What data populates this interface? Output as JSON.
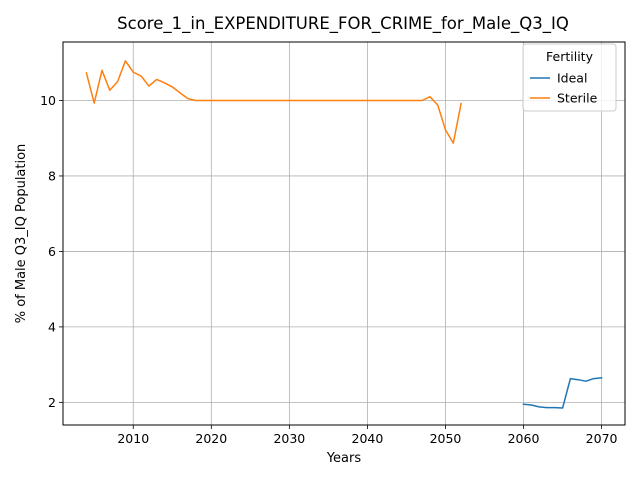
{
  "chart_data": {
    "type": "line",
    "title": "Score_1_in_EXPENDITURE_FOR_CRIME_for_Male_Q3_IQ",
    "xlabel": "Years",
    "ylabel": "% of Male Q3_IQ Population",
    "xlim": [
      2001,
      2073
    ],
    "ylim": [
      1.4,
      11.55
    ],
    "xticks": [
      2010,
      2020,
      2030,
      2040,
      2050,
      2060,
      2070
    ],
    "yticks": [
      2,
      4,
      6,
      8,
      10
    ],
    "grid": true,
    "legend": {
      "title": "Fertility",
      "placement": "top-right"
    },
    "series": [
      {
        "name": "Ideal",
        "color": "#1f77b4",
        "x": [
          2060,
          2061,
          2062,
          2063,
          2064,
          2065,
          2066,
          2067,
          2068,
          2069,
          2070
        ],
        "y": [
          1.95,
          1.93,
          1.88,
          1.86,
          1.86,
          1.85,
          2.63,
          2.6,
          2.56,
          2.63,
          2.65
        ]
      },
      {
        "name": "Sterile",
        "color": "#ff7f0e",
        "x": [
          2004,
          2005,
          2006,
          2007,
          2008,
          2009,
          2010,
          2011,
          2012,
          2013,
          2014,
          2015,
          2016,
          2017,
          2018,
          2019,
          2020,
          2025,
          2030,
          2035,
          2040,
          2045,
          2046,
          2047,
          2048,
          2049,
          2050,
          2051,
          2052
        ],
        "y": [
          10.73,
          9.93,
          10.8,
          10.27,
          10.5,
          11.05,
          10.75,
          10.65,
          10.38,
          10.56,
          10.47,
          10.36,
          10.2,
          10.05,
          10.0,
          10.0,
          10.0,
          10.0,
          10.0,
          10.0,
          10.0,
          10.0,
          10.0,
          10.0,
          10.1,
          9.88,
          9.22,
          8.87,
          9.92
        ]
      }
    ]
  }
}
